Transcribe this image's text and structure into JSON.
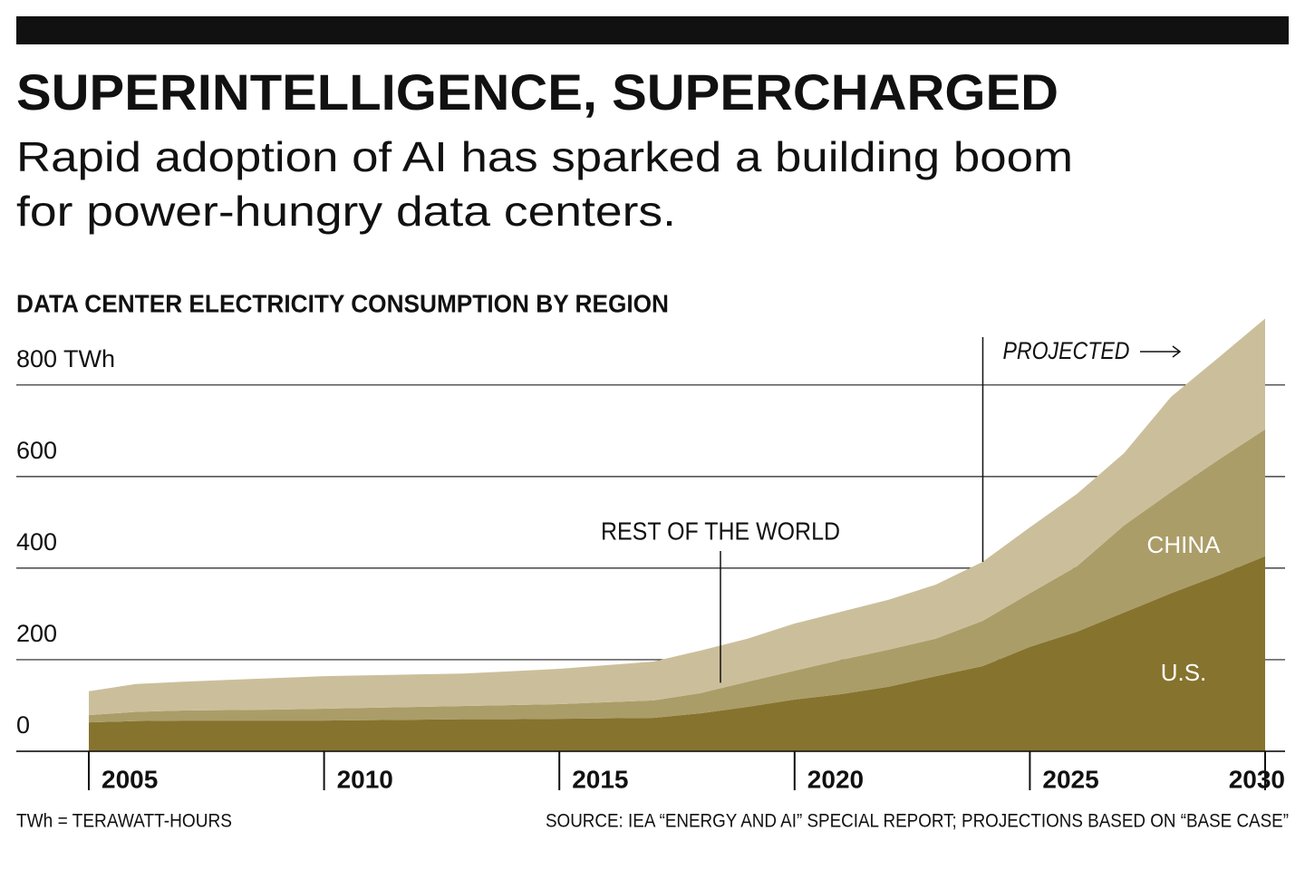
{
  "chart_data": {
    "type": "stacked-area",
    "title": "SUPERINTELLIGENCE, SUPERCHARGED",
    "subtitle": [
      "Rapid adoption of AI has sparked a building boom",
      "for power-hungry data centers."
    ],
    "chart_title": "DATA CENTER ELECTRICITY CONSUMPTION BY REGION",
    "x": [
      2005,
      2006,
      2007,
      2008,
      2009,
      2010,
      2011,
      2012,
      2013,
      2014,
      2015,
      2016,
      2017,
      2018,
      2019,
      2020,
      2021,
      2022,
      2023,
      2024,
      2025,
      2026,
      2027,
      2028,
      2029,
      2030
    ],
    "series": [
      {
        "name": "U.S.",
        "color": "#86732e",
        "values": [
          63,
          66,
          67,
          67,
          67,
          67,
          68,
          69,
          70,
          70,
          71,
          72,
          73,
          83,
          97,
          113,
          125,
          141,
          164,
          186,
          228,
          261,
          303,
          345,
          384,
          426
        ]
      },
      {
        "name": "CHINA",
        "color": "#ab9d68",
        "values": [
          16,
          20,
          22,
          23,
          24,
          26,
          27,
          28,
          29,
          31,
          32,
          35,
          38,
          44,
          55,
          63,
          75,
          81,
          82,
          99,
          117,
          143,
          190,
          221,
          252,
          277
        ]
      },
      {
        "name": "REST OF THE WORLD",
        "color": "#cbbf9b",
        "values": [
          52,
          61,
          63,
          66,
          69,
          71,
          71,
          71,
          71,
          74,
          77,
          81,
          85,
          93,
          94,
          103,
          105,
          109,
          118,
          129,
          144,
          158,
          158,
          208,
          223,
          242
        ]
      }
    ],
    "xlim": [
      2005,
      2030
    ],
    "xticks": [
      2005,
      2010,
      2015,
      2020,
      2025,
      2030
    ],
    "ylim": [
      0,
      950
    ],
    "yticks": [
      0,
      200,
      400,
      600,
      {
        "value": 800,
        "label": "800 TWh"
      }
    ],
    "grid": true,
    "projection": {
      "label": "PROJECTED",
      "from": 2024
    },
    "footnote": "TWh = TERAWATT-HOURS",
    "source": "SOURCE: IEA “ENERGY AND AI” SPECIAL REPORT; PROJECTIONS BASED ON “BASE CASE”"
  }
}
